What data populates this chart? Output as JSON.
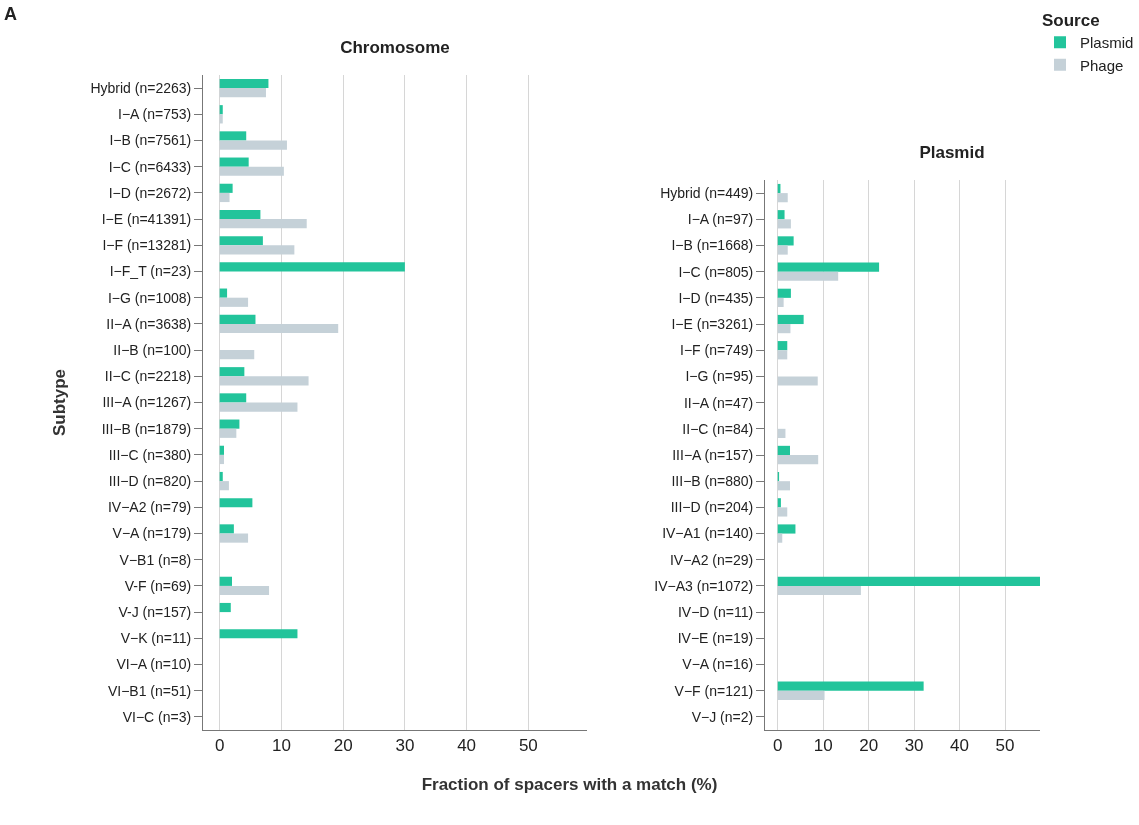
{
  "chart_data": [
    {
      "type": "bar",
      "title": "Chromosome",
      "ylabel": "Subtype",
      "xlabel": "Fraction of spacers with a match (%)",
      "orientation": "horizontal",
      "annotations": [
        "A"
      ],
      "categories": [
        "Hybrid (n=2263)",
        "I−A (n=753)",
        "I−B (n=7561)",
        "I−C (n=6433)",
        "I−D (n=2672)",
        "I−E (n=41391)",
        "I−F (n=13281)",
        "I−F_T (n=23)",
        "I−G (n=1008)",
        "II−A (n=3638)",
        "II−B (n=100)",
        "II−C (n=2218)",
        "III−A (n=1267)",
        "III−B (n=1879)",
        "III−C (n=380)",
        "III−D (n=820)",
        "IV−A2 (n=79)",
        "V−A (n=179)",
        "V−B1 (n=8)",
        "V-F (n=69)",
        "V-J (n=157)",
        "V−K (n=11)",
        "VI−A (n=10)",
        "VI−B1 (n=51)",
        "VI−C (n=3)"
      ],
      "series": [
        {
          "color": "#22c49b",
          "values": [
            7.9,
            0.5,
            4.3,
            4.7,
            2.1,
            6.6,
            7.0,
            30,
            1.2,
            5.8,
            0,
            4.0,
            4.3,
            3.2,
            0.7,
            0.5,
            5.3,
            2.3,
            0,
            2.0,
            1.8,
            12.6,
            0,
            0,
            0
          ]
        },
        {
          "color": "#c5d1d8",
          "values": [
            7.5,
            0.5,
            10.9,
            10.4,
            1.6,
            14.1,
            12.1,
            0,
            4.6,
            19.2,
            5.6,
            14.4,
            12.6,
            2.7,
            0.7,
            1.5,
            0,
            4.6,
            0,
            8.0,
            0,
            0,
            0,
            0,
            0
          ]
        }
      ],
      "xlim": [
        -2.7,
        59.5
      ],
      "xticks": [
        0,
        10,
        20,
        30,
        40,
        50
      ],
      "grid": "x",
      "legend": false
    },
    {
      "type": "bar",
      "title": "Plasmid",
      "orientation": "horizontal",
      "legend_title": "Source",
      "categories": [
        "Hybrid (n=449)",
        "I−A (n=97)",
        "I−B (n=1668)",
        "I−C (n=805)",
        "I−D (n=435)",
        "I−E (n=3261)",
        "I−F (n=749)",
        "I−G (n=95)",
        "II−A (n=47)",
        "II−C (n=84)",
        "III−A (n=157)",
        "III−B (n=880)",
        "III−D (n=204)",
        "IV−A1 (n=140)",
        "IV−A2 (n=29)",
        "IV−A3 (n=1072)",
        "IV−D (n=11)",
        "IV−E (n=19)",
        "V−A (n=16)",
        "V−F (n=121)",
        "V−J (n=2)"
      ],
      "series": [
        {
          "name": "Plasmid",
          "color": "#22c49b",
          "values": [
            0.6,
            1.5,
            3.5,
            22.3,
            2.9,
            5.7,
            2.1,
            0,
            0,
            0,
            2.7,
            0.3,
            0.7,
            3.9,
            0,
            57.7,
            0,
            0,
            0,
            32.1,
            0
          ]
        },
        {
          "name": "Phage",
          "color": "#c5d1d8",
          "values": [
            2.2,
            2.9,
            2.2,
            13.3,
            1.3,
            2.8,
            2.1,
            8.8,
            0,
            1.7,
            8.9,
            2.7,
            2.1,
            1.0,
            0,
            18.3,
            0,
            0,
            0,
            10.3,
            0
          ]
        }
      ],
      "xlim": [
        -2.8,
        57.7
      ],
      "xticks": [
        0,
        10,
        20,
        30,
        40,
        50
      ],
      "grid": "x",
      "legend": "top right"
    }
  ]
}
